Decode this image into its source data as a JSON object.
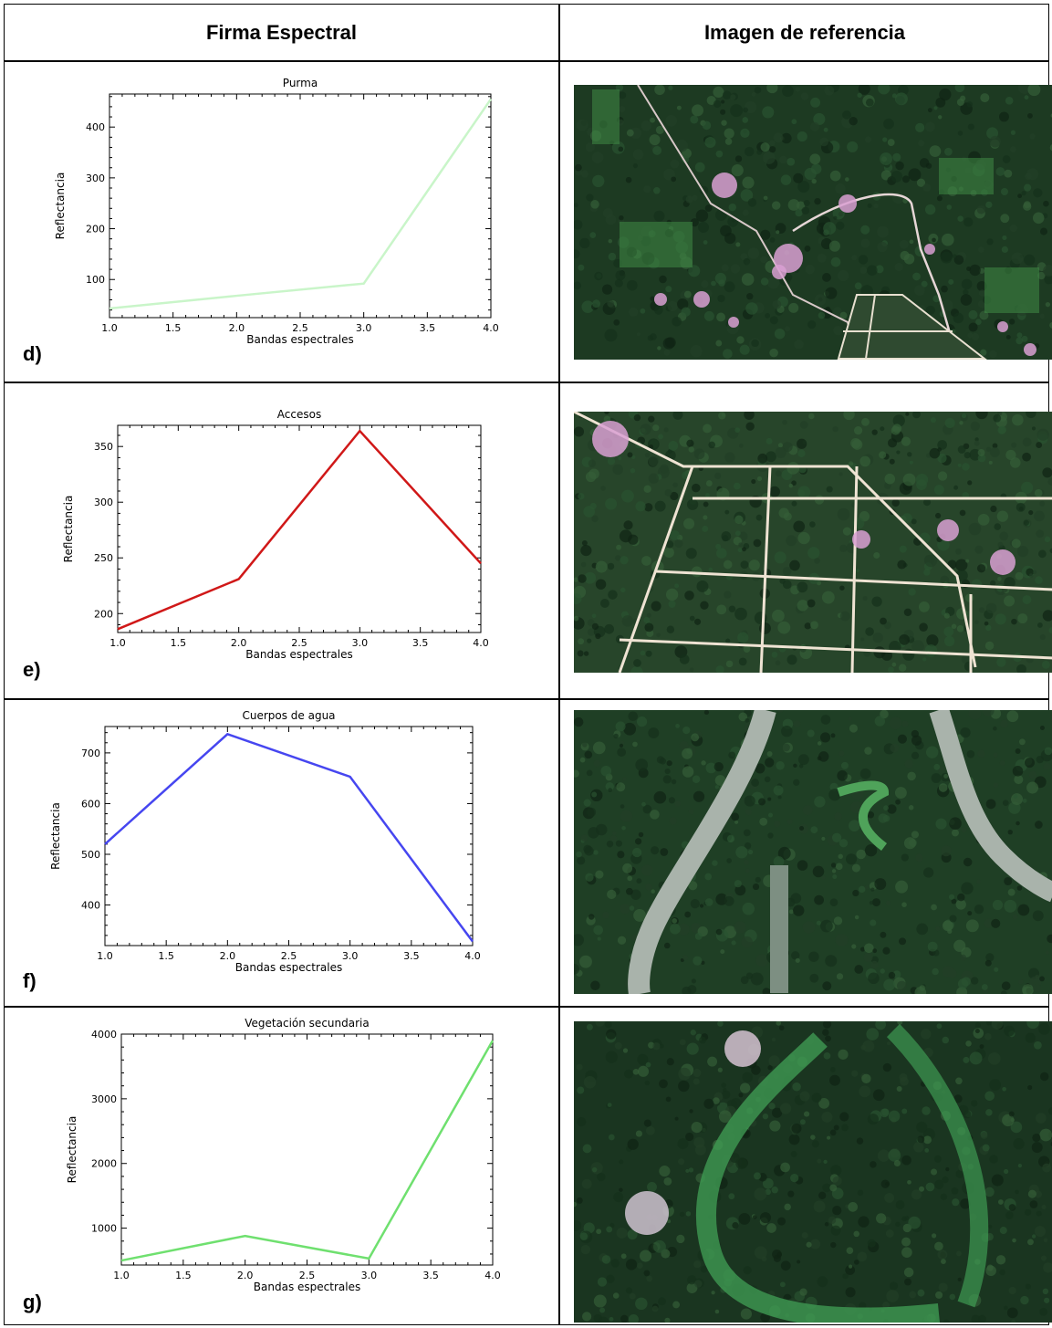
{
  "header": {
    "col1": "Firma Espectral",
    "col2": "Imagen de referencia"
  },
  "chart_data": [
    {
      "panel": "d)",
      "type": "line",
      "title": "Purma",
      "xlabel": "Bandas espectrales",
      "ylabel": "Reflectancia",
      "x": [
        1,
        2,
        3,
        4
      ],
      "values": [
        43,
        68,
        92,
        455
      ],
      "xlim": [
        1,
        4
      ],
      "ylim": [
        25,
        465
      ],
      "xticks": [
        "1.0",
        "1.5",
        "2.0",
        "2.5",
        "3.0",
        "3.5",
        "4.0"
      ],
      "yticks": [
        100,
        200,
        300,
        400
      ],
      "color": "#c9f5c9",
      "grid": false
    },
    {
      "panel": "e)",
      "type": "line",
      "title": "Accesos",
      "xlabel": "Bandas espectrales",
      "ylabel": "Reflectancia",
      "x": [
        1,
        2,
        3,
        4
      ],
      "values": [
        186,
        231,
        364,
        245
      ],
      "xlim": [
        1,
        4
      ],
      "ylim": [
        183,
        369
      ],
      "xticks": [
        "1.0",
        "1.5",
        "2.0",
        "2.5",
        "3.0",
        "3.5",
        "4.0"
      ],
      "yticks": [
        200,
        250,
        300,
        350
      ],
      "color": "#d01818",
      "grid": false
    },
    {
      "panel": "f)",
      "type": "line",
      "title": "Cuerpos de agua",
      "xlabel": "Bandas espectrales",
      "ylabel": "Reflectancia",
      "x": [
        1,
        2,
        3,
        4
      ],
      "values": [
        520,
        737,
        653,
        328
      ],
      "xlim": [
        1,
        4
      ],
      "ylim": [
        320,
        752
      ],
      "xticks": [
        "1.0",
        "1.5",
        "2.0",
        "2.5",
        "3.0",
        "3.5",
        "4.0"
      ],
      "yticks": [
        400,
        500,
        600,
        700
      ],
      "color": "#4646f0",
      "grid": false
    },
    {
      "panel": "g)",
      "type": "line",
      "title": "Vegetación secundaria",
      "xlabel": "Bandas espectrales",
      "ylabel": "Reflectancia",
      "x": [
        1,
        2,
        3,
        4
      ],
      "values": [
        500,
        880,
        530,
        3900
      ],
      "xlim": [
        1,
        4
      ],
      "ylim": [
        430,
        4000
      ],
      "xticks": [
        "1.0",
        "1.5",
        "2.0",
        "2.5",
        "3.0",
        "3.5",
        "4.0"
      ],
      "yticks": [
        1000,
        2000,
        3000,
        4000
      ],
      "color": "#6fe06f",
      "grid": false
    }
  ],
  "images": [
    {
      "name": "purma-reference",
      "base": "#1d3a22",
      "features": [
        "forest",
        "pink-clearings",
        "roads",
        "grid-plots"
      ]
    },
    {
      "name": "accesos-reference",
      "base": "#27452a",
      "features": [
        "forest",
        "road-grid"
      ]
    },
    {
      "name": "agua-reference",
      "base": "#1f3f25",
      "features": [
        "forest",
        "river"
      ]
    },
    {
      "name": "vegetacion-reference",
      "base": "#1a3520",
      "features": [
        "forest",
        "green-arc"
      ]
    }
  ]
}
